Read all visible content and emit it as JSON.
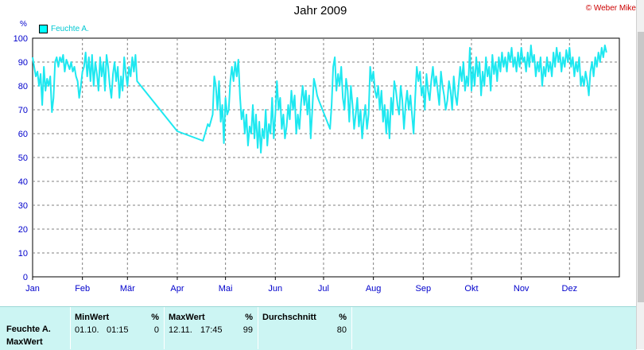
{
  "header": {
    "title": "Jahr 2009",
    "copyright": "© Weber Mike"
  },
  "legend": {
    "label": "Feuchte A."
  },
  "colors": {
    "series": "#1ee8f0",
    "axis_text": "#0000cc",
    "grid": "#808080",
    "stats_bg": "#ccf5f3"
  },
  "chart_data": {
    "type": "line",
    "title": "Jahr 2009",
    "ylabel": "%",
    "ylim": [
      0,
      100
    ],
    "yticks": [
      0,
      10,
      20,
      30,
      40,
      50,
      60,
      70,
      80,
      90,
      100
    ],
    "xlim": [
      0,
      365
    ],
    "xticks": [
      {
        "label": "Jan",
        "day": 0
      },
      {
        "label": "Feb",
        "day": 31
      },
      {
        "label": "Mär",
        "day": 59
      },
      {
        "label": "Apr",
        "day": 90
      },
      {
        "label": "Mai",
        "day": 120
      },
      {
        "label": "Jun",
        "day": 151
      },
      {
        "label": "Jul",
        "day": 181
      },
      {
        "label": "Aug",
        "day": 212
      },
      {
        "label": "Sep",
        "day": 243
      },
      {
        "label": "Okt",
        "day": 273
      },
      {
        "label": "Nov",
        "day": 304
      },
      {
        "label": "Dez",
        "day": 334
      }
    ],
    "grid": true,
    "legend_position": "top-left",
    "series": [
      {
        "name": "Feuchte A.",
        "points": [
          [
            0,
            92
          ],
          [
            1,
            88
          ],
          [
            2,
            84
          ],
          [
            3,
            86
          ],
          [
            4,
            80
          ],
          [
            5,
            85
          ],
          [
            6,
            72
          ],
          [
            7,
            88
          ],
          [
            8,
            78
          ],
          [
            9,
            83
          ],
          [
            10,
            80
          ],
          [
            11,
            84
          ],
          [
            12,
            69
          ],
          [
            13,
            75
          ],
          [
            14,
            90
          ],
          [
            15,
            92
          ],
          [
            16,
            88
          ],
          [
            17,
            92
          ],
          [
            18,
            90
          ],
          [
            19,
            93
          ],
          [
            20,
            86
          ],
          [
            21,
            91
          ],
          [
            22,
            89
          ],
          [
            23,
            87
          ],
          [
            24,
            90
          ],
          [
            25,
            86
          ],
          [
            26,
            88
          ],
          [
            27,
            84
          ],
          [
            28,
            82
          ],
          [
            29,
            75
          ],
          [
            30,
            80
          ],
          [
            31,
            86
          ],
          [
            32,
            88
          ],
          [
            33,
            94
          ],
          [
            34,
            84
          ],
          [
            35,
            92
          ],
          [
            36,
            82
          ],
          [
            37,
            93
          ],
          [
            38,
            80
          ],
          [
            39,
            90
          ],
          [
            40,
            85
          ],
          [
            41,
            78
          ],
          [
            42,
            92
          ],
          [
            43,
            84
          ],
          [
            44,
            90
          ],
          [
            45,
            78
          ],
          [
            46,
            93
          ],
          [
            47,
            88
          ],
          [
            48,
            80
          ],
          [
            49,
            75
          ],
          [
            50,
            85
          ],
          [
            51,
            90
          ],
          [
            52,
            82
          ],
          [
            53,
            88
          ],
          [
            54,
            75
          ],
          [
            55,
            84
          ],
          [
            56,
            78
          ],
          [
            57,
            92
          ],
          [
            58,
            85
          ],
          [
            59,
            80
          ],
          [
            60,
            88
          ],
          [
            61,
            84
          ],
          [
            62,
            92
          ],
          [
            63,
            86
          ],
          [
            64,
            93
          ],
          [
            65,
            82
          ],
          [
            90,
            61
          ],
          [
            106,
            57
          ],
          [
            109,
            64
          ],
          [
            110,
            63
          ],
          [
            112,
            68
          ],
          [
            113,
            84
          ],
          [
            114,
            80
          ],
          [
            115,
            70
          ],
          [
            116,
            82
          ],
          [
            117,
            65
          ],
          [
            118,
            72
          ],
          [
            119,
            56
          ],
          [
            120,
            75
          ],
          [
            121,
            68
          ],
          [
            122,
            70
          ],
          [
            123,
            82
          ],
          [
            124,
            88
          ],
          [
            125,
            82
          ],
          [
            126,
            90
          ],
          [
            127,
            84
          ],
          [
            128,
            91
          ],
          [
            129,
            76
          ],
          [
            130,
            66
          ],
          [
            131,
            70
          ],
          [
            132,
            60
          ],
          [
            133,
            68
          ],
          [
            134,
            55
          ],
          [
            135,
            63
          ],
          [
            136,
            60
          ],
          [
            137,
            72
          ],
          [
            138,
            58
          ],
          [
            139,
            68
          ],
          [
            140,
            54
          ],
          [
            141,
            65
          ],
          [
            142,
            52
          ],
          [
            143,
            62
          ],
          [
            144,
            58
          ],
          [
            145,
            70
          ],
          [
            146,
            55
          ],
          [
            147,
            64
          ],
          [
            148,
            60
          ],
          [
            149,
            75
          ],
          [
            150,
            58
          ],
          [
            151,
            68
          ],
          [
            152,
            82
          ],
          [
            153,
            70
          ],
          [
            154,
            75
          ],
          [
            155,
            62
          ],
          [
            156,
            68
          ],
          [
            157,
            58
          ],
          [
            158,
            63
          ],
          [
            159,
            72
          ],
          [
            160,
            66
          ],
          [
            161,
            78
          ],
          [
            162,
            70
          ],
          [
            163,
            76
          ],
          [
            164,
            60
          ],
          [
            165,
            68
          ],
          [
            166,
            62
          ],
          [
            167,
            73
          ],
          [
            168,
            80
          ],
          [
            169,
            72
          ],
          [
            170,
            78
          ],
          [
            171,
            68
          ],
          [
            172,
            76
          ],
          [
            173,
            58
          ],
          [
            174,
            70
          ],
          [
            175,
            83
          ],
          [
            176,
            80
          ],
          [
            177,
            76
          ],
          [
            178,
            74
          ],
          [
            185,
            62
          ],
          [
            186,
            72
          ],
          [
            187,
            88
          ],
          [
            188,
            92
          ],
          [
            189,
            78
          ],
          [
            190,
            85
          ],
          [
            191,
            80
          ],
          [
            192,
            88
          ],
          [
            193,
            75
          ],
          [
            194,
            70
          ],
          [
            195,
            83
          ],
          [
            196,
            78
          ],
          [
            197,
            65
          ],
          [
            198,
            80
          ],
          [
            199,
            72
          ],
          [
            200,
            62
          ],
          [
            201,
            68
          ],
          [
            202,
            75
          ],
          [
            203,
            63
          ],
          [
            204,
            70
          ],
          [
            205,
            58
          ],
          [
            206,
            66
          ],
          [
            207,
            72
          ],
          [
            208,
            62
          ],
          [
            209,
            68
          ],
          [
            210,
            88
          ],
          [
            211,
            82
          ],
          [
            212,
            86
          ],
          [
            213,
            78
          ],
          [
            214,
            75
          ],
          [
            215,
            80
          ],
          [
            216,
            70
          ],
          [
            217,
            78
          ],
          [
            218,
            65
          ],
          [
            219,
            72
          ],
          [
            220,
            60
          ],
          [
            221,
            70
          ],
          [
            222,
            58
          ],
          [
            223,
            75
          ],
          [
            224,
            68
          ],
          [
            225,
            82
          ],
          [
            226,
            78
          ],
          [
            227,
            72
          ],
          [
            228,
            68
          ],
          [
            229,
            80
          ],
          [
            230,
            74
          ],
          [
            231,
            62
          ],
          [
            232,
            72
          ],
          [
            233,
            78
          ],
          [
            234,
            70
          ],
          [
            235,
            76
          ],
          [
            236,
            68
          ],
          [
            237,
            60
          ],
          [
            238,
            75
          ],
          [
            239,
            88
          ],
          [
            240,
            82
          ],
          [
            241,
            86
          ],
          [
            242,
            76
          ],
          [
            243,
            80
          ],
          [
            244,
            70
          ],
          [
            245,
            85
          ],
          [
            246,
            78
          ],
          [
            247,
            74
          ],
          [
            248,
            82
          ],
          [
            249,
            88
          ],
          [
            250,
            80
          ],
          [
            251,
            84
          ],
          [
            252,
            78
          ],
          [
            253,
            72
          ],
          [
            254,
            86
          ],
          [
            255,
            80
          ],
          [
            256,
            76
          ],
          [
            257,
            70
          ],
          [
            258,
            74
          ],
          [
            259,
            82
          ],
          [
            260,
            78
          ],
          [
            261,
            70
          ],
          [
            262,
            84
          ],
          [
            263,
            76
          ],
          [
            264,
            72
          ],
          [
            265,
            80
          ],
          [
            266,
            88
          ],
          [
            267,
            82
          ],
          [
            268,
            90
          ],
          [
            269,
            78
          ],
          [
            270,
            84
          ],
          [
            271,
            80
          ],
          [
            272,
            96
          ],
          [
            273,
            78
          ],
          [
            274,
            88
          ],
          [
            275,
            80
          ],
          [
            276,
            92
          ],
          [
            277,
            84
          ],
          [
            278,
            90
          ],
          [
            279,
            76
          ],
          [
            280,
            86
          ],
          [
            281,
            80
          ],
          [
            282,
            92
          ],
          [
            283,
            84
          ],
          [
            284,
            88
          ],
          [
            285,
            78
          ],
          [
            286,
            93
          ],
          [
            287,
            85
          ],
          [
            288,
            90
          ],
          [
            289,
            82
          ],
          [
            290,
            92
          ],
          [
            291,
            86
          ],
          [
            292,
            94
          ],
          [
            293,
            88
          ],
          [
            294,
            92
          ],
          [
            295,
            86
          ],
          [
            296,
            94
          ],
          [
            297,
            90
          ],
          [
            298,
            96
          ],
          [
            299,
            88
          ],
          [
            300,
            92
          ],
          [
            301,
            86
          ],
          [
            302,
            94
          ],
          [
            303,
            88
          ],
          [
            304,
            96
          ],
          [
            305,
            90
          ],
          [
            306,
            92
          ],
          [
            307,
            86
          ],
          [
            308,
            94
          ],
          [
            309,
            88
          ],
          [
            310,
            97
          ],
          [
            311,
            90
          ],
          [
            312,
            93
          ],
          [
            313,
            84
          ],
          [
            314,
            90
          ],
          [
            315,
            86
          ],
          [
            316,
            92
          ],
          [
            317,
            80
          ],
          [
            318,
            88
          ],
          [
            319,
            84
          ],
          [
            320,
            92
          ],
          [
            321,
            86
          ],
          [
            322,
            90
          ],
          [
            323,
            84
          ],
          [
            324,
            94
          ],
          [
            325,
            88
          ],
          [
            326,
            96
          ],
          [
            327,
            90
          ],
          [
            328,
            94
          ],
          [
            329,
            86
          ],
          [
            330,
            92
          ],
          [
            331,
            88
          ],
          [
            332,
            95
          ],
          [
            333,
            90
          ],
          [
            334,
            96
          ],
          [
            335,
            88
          ],
          [
            336,
            92
          ],
          [
            337,
            84
          ],
          [
            338,
            90
          ],
          [
            339,
            86
          ],
          [
            340,
            92
          ],
          [
            341,
            80
          ],
          [
            342,
            84
          ],
          [
            343,
            80
          ],
          [
            344,
            86
          ],
          [
            345,
            82
          ],
          [
            346,
            76
          ],
          [
            347,
            86
          ],
          [
            348,
            90
          ],
          [
            349,
            84
          ],
          [
            350,
            92
          ],
          [
            351,
            88
          ],
          [
            352,
            94
          ],
          [
            353,
            90
          ],
          [
            354,
            96
          ],
          [
            355,
            92
          ],
          [
            356,
            97
          ],
          [
            357,
            94
          ]
        ]
      }
    ]
  },
  "stats": {
    "row_label_1": "Feuchte A.",
    "row_label_2": "MaxWert",
    "min": {
      "header": "MinWert",
      "unit": "%",
      "date": "01.10.",
      "time": "01:15",
      "value": "0"
    },
    "max": {
      "header": "MaxWert",
      "unit": "%",
      "date": "12.11.",
      "time": "17:45",
      "value": "99"
    },
    "avg": {
      "header": "Durchschnitt",
      "unit": "%",
      "value": "80"
    }
  }
}
